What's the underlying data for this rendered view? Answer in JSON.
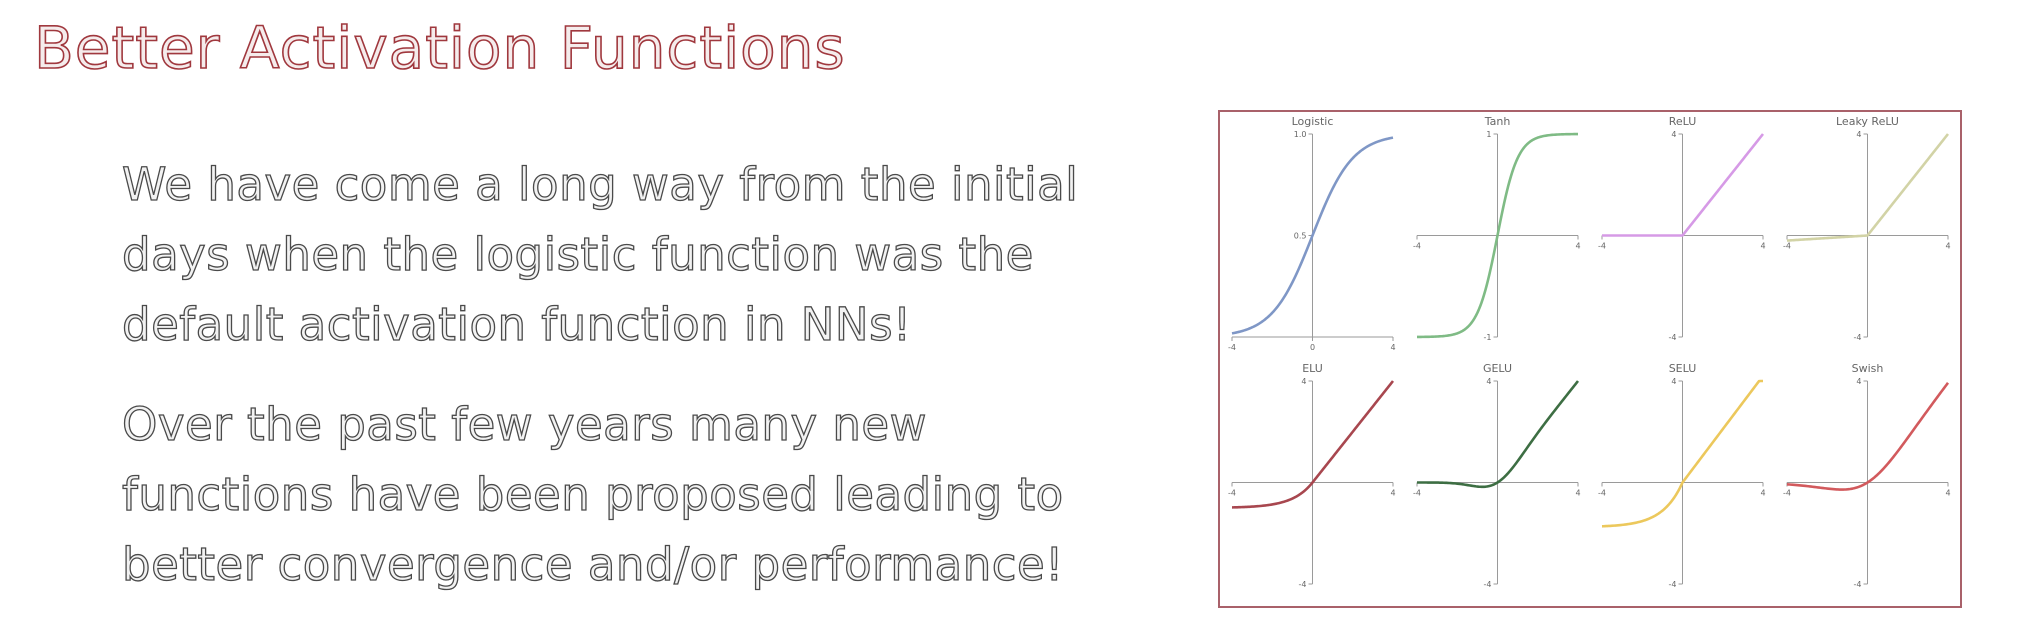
{
  "slide": {
    "title": "Better Activation Functions",
    "paragraphs": [
      [
        "We have come a long way from the initial",
        "days when the logistic function was the",
        "default activation function in NNs!"
      ],
      [
        "Over the past few years many new",
        "functions have been proposed leading to",
        "better convergence and/or performance!"
      ]
    ]
  },
  "chart_data": [
    {
      "type": "line",
      "title": "Logistic",
      "function": "logistic",
      "color": "#7f97c6",
      "xlim": [
        -4,
        4
      ],
      "ylim": [
        0,
        1.0
      ],
      "x_ticks": [
        {
          "v": -4,
          "label": "-4"
        },
        {
          "v": 0,
          "label": "0"
        },
        {
          "v": 4,
          "label": "4"
        }
      ],
      "y_ticks": [
        {
          "v": 0.5,
          "label": "0.5"
        },
        {
          "v": 1.0,
          "label": "1.0"
        }
      ]
    },
    {
      "type": "line",
      "title": "Tanh",
      "function": "tanh",
      "color": "#7fbb85",
      "xlim": [
        -4,
        4
      ],
      "ylim": [
        -1,
        1
      ],
      "x_ticks": [
        {
          "v": -4,
          "label": "-4"
        },
        {
          "v": 4,
          "label": "4"
        }
      ],
      "y_ticks": [
        {
          "v": 1,
          "label": "1"
        },
        {
          "v": -1,
          "label": "-1"
        }
      ]
    },
    {
      "type": "line",
      "title": "ReLU",
      "function": "relu",
      "color": "#d69ae6",
      "xlim": [
        -4,
        4
      ],
      "ylim": [
        -4,
        4
      ],
      "x_ticks": [
        {
          "v": -4,
          "label": "-4"
        },
        {
          "v": 4,
          "label": "4"
        }
      ],
      "y_ticks": [
        {
          "v": 4,
          "label": "4"
        },
        {
          "v": -4,
          "label": "-4"
        }
      ]
    },
    {
      "type": "line",
      "title": "Leaky ReLU",
      "function": "leaky_relu",
      "color": "#d2d3a6",
      "xlim": [
        -4,
        4
      ],
      "ylim": [
        -4,
        4
      ],
      "x_ticks": [
        {
          "v": -4,
          "label": "-4"
        },
        {
          "v": 4,
          "label": "4"
        }
      ],
      "y_ticks": [
        {
          "v": 4,
          "label": "4"
        },
        {
          "v": -4,
          "label": "-4"
        }
      ]
    },
    {
      "type": "line",
      "title": "ELU",
      "function": "elu",
      "color": "#a8474f",
      "xlim": [
        -4,
        4
      ],
      "ylim": [
        -4,
        4
      ],
      "x_ticks": [
        {
          "v": -4,
          "label": "-4"
        },
        {
          "v": 4,
          "label": "4"
        }
      ],
      "y_ticks": [
        {
          "v": 4,
          "label": "4"
        },
        {
          "v": -4,
          "label": "-4"
        }
      ]
    },
    {
      "type": "line",
      "title": "GELU",
      "function": "gelu",
      "color": "#3d6e43",
      "xlim": [
        -4,
        4
      ],
      "ylim": [
        -4,
        4
      ],
      "x_ticks": [
        {
          "v": -4,
          "label": "-4"
        },
        {
          "v": 4,
          "label": "4"
        }
      ],
      "y_ticks": [
        {
          "v": 4,
          "label": "4"
        },
        {
          "v": -4,
          "label": "-4"
        }
      ]
    },
    {
      "type": "line",
      "title": "SELU",
      "function": "selu",
      "color": "#ecc85c",
      "xlim": [
        -4,
        4
      ],
      "ylim": [
        -4,
        4
      ],
      "x_ticks": [
        {
          "v": -4,
          "label": "-4"
        },
        {
          "v": 4,
          "label": "4"
        }
      ],
      "y_ticks": [
        {
          "v": 4,
          "label": "4"
        },
        {
          "v": -4,
          "label": "-4"
        }
      ]
    },
    {
      "type": "line",
      "title": "Swish",
      "function": "swish",
      "color": "#d25a5d",
      "xlim": [
        -4,
        4
      ],
      "ylim": [
        -4,
        4
      ],
      "x_ticks": [
        {
          "v": -4,
          "label": "-4"
        },
        {
          "v": 4,
          "label": "4"
        }
      ],
      "y_ticks": [
        {
          "v": 4,
          "label": "4"
        },
        {
          "v": -4,
          "label": "-4"
        }
      ]
    }
  ]
}
